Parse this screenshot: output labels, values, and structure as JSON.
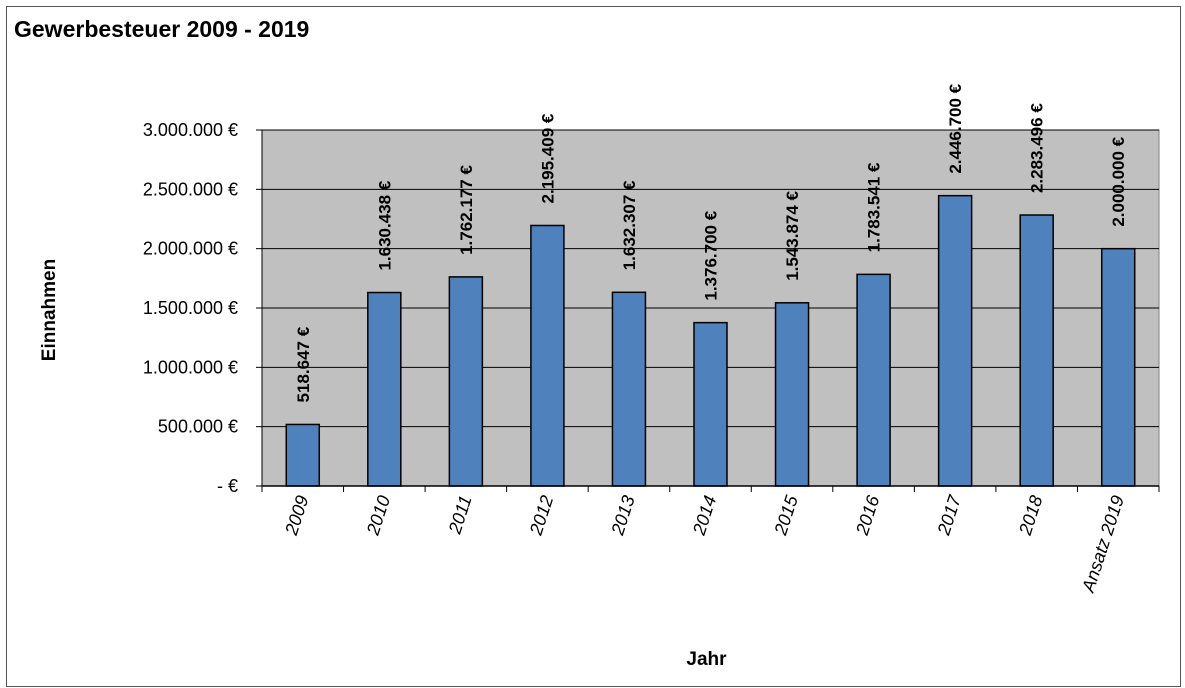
{
  "colors": {
    "plot_background": "#c0c0c0",
    "bar_fill": "#4f81bd",
    "bar_stroke": "#000000",
    "gridline": "#000000"
  },
  "chart_data": {
    "type": "bar",
    "title": "Gewerbesteuer 2009 - 2019",
    "xlabel": "Jahr",
    "ylabel": "Einnahmen",
    "categories": [
      "2009",
      "2010",
      "2011",
      "2012",
      "2013",
      "2014",
      "2015",
      "2016",
      "2017",
      "2018",
      "Ansatz 2019"
    ],
    "values": [
      518647,
      1630438,
      1762177,
      2195409,
      1632307,
      1376700,
      1543874,
      1783541,
      2446700,
      2283496,
      2000000
    ],
    "data_labels": [
      "518.647 €",
      "1.630.438 €",
      "1.762.177 €",
      "2.195.409 €",
      "1.632.307 €",
      "1.376.700 €",
      "1.543.874 €",
      "1.783.541 €",
      "2.446.700 €",
      "2.283.496 €",
      "2.000.000 €"
    ],
    "ylim": [
      0,
      3000000
    ],
    "yticks": [
      0,
      500000,
      1000000,
      1500000,
      2000000,
      2500000,
      3000000
    ],
    "ytick_labels": [
      "- €",
      "500.000 €",
      "1.000.000 €",
      "1.500.000 €",
      "2.000.000 €",
      "2.500.000 €",
      "3.000.000 €"
    ],
    "grid": true,
    "legend": "none"
  }
}
